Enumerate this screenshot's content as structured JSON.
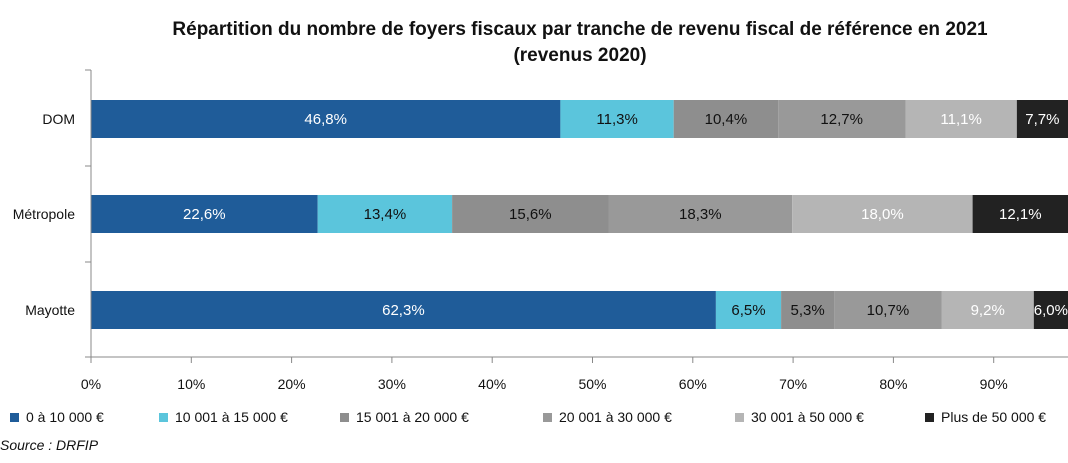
{
  "chart_data": {
    "type": "bar",
    "orientation": "horizontal",
    "stacked": true,
    "title": "Répartition du nombre de foyers fiscaux par tranche de revenu fiscal de référence en 2021",
    "subtitle": "(revenus 2020)",
    "categories": [
      "DOM",
      "Métropole",
      "Mayotte"
    ],
    "series": [
      {
        "name": "0 à 10 000 €",
        "color": "#1f5c99",
        "label_color": "#ffffff",
        "values": [
          46.8,
          22.6,
          62.3
        ],
        "labels": [
          "46,8%",
          "22,6%",
          "62,3%"
        ]
      },
      {
        "name": "10 001 à 15 000 €",
        "color": "#5bc5dc",
        "label_color": "#111111",
        "values": [
          11.3,
          13.4,
          6.5
        ],
        "labels": [
          "11,3%",
          "13,4%",
          "6,5%"
        ]
      },
      {
        "name": "15 001 à 20 000 €",
        "color": "#8e8e8e",
        "label_color": "#111111",
        "values": [
          10.4,
          15.6,
          5.3
        ],
        "labels": [
          "10,4%",
          "15,6%",
          "5,3%"
        ]
      },
      {
        "name": "20 001 à 30 000 €",
        "color": "#999999",
        "label_color": "#111111",
        "values": [
          12.7,
          18.3,
          10.7
        ],
        "labels": [
          "12,7%",
          "18,3%",
          "10,7%"
        ]
      },
      {
        "name": "30 001 à 50 000 €",
        "color": "#b5b5b5",
        "label_color": "#ffffff",
        "values": [
          11.1,
          18.0,
          9.2
        ],
        "labels": [
          "11,1%",
          "18,0%",
          "9,2%"
        ]
      },
      {
        "name": "Plus de 50 000 €",
        "color": "#222222",
        "label_color": "#ffffff",
        "values": [
          7.7,
          12.1,
          6.0
        ],
        "labels": [
          "7,7%",
          "12,1%",
          "6,0%"
        ]
      }
    ],
    "xlim": [
      0,
      100
    ],
    "xticks": [
      "0%",
      "10%",
      "20%",
      "30%",
      "40%",
      "50%",
      "60%",
      "70%",
      "80%",
      "90%"
    ],
    "grid": false,
    "legend": "bottom"
  },
  "source": "Source : DRFIP"
}
